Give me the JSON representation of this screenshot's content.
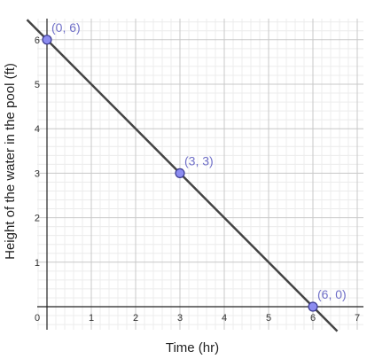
{
  "chart_data": {
    "type": "line",
    "xlabel": "Time (hr)",
    "ylabel": "Height of the water in the pool (ft)",
    "xlim": [
      -0.2,
      7.2
    ],
    "ylim": [
      -0.5,
      6.5
    ],
    "x_ticks": [
      0,
      1,
      2,
      3,
      4,
      5,
      6,
      7
    ],
    "y_ticks": [
      1,
      2,
      3,
      4,
      5,
      6
    ],
    "origin_label": "0",
    "grid": true,
    "minor_grid_per_unit": 5,
    "series": [
      {
        "equation": "y = 6 - x",
        "slope": -1,
        "intercept": 6,
        "x_range": [
          -0.45,
          6.55
        ],
        "color": "#444444"
      }
    ],
    "points": [
      {
        "x": 0,
        "y": 6,
        "label": "(0, 6)"
      },
      {
        "x": 3,
        "y": 3,
        "label": "(3, 3)"
      },
      {
        "x": 6,
        "y": 0,
        "label": "(6, 0)"
      }
    ],
    "colors": {
      "line": "#444444",
      "point_fill": "#8c8cf0",
      "point_stroke": "#3a3a90",
      "point_label": "#7070c8",
      "major_grid": "#c8c8c8",
      "minor_grid": "#ececec",
      "axis": "#222222"
    }
  }
}
